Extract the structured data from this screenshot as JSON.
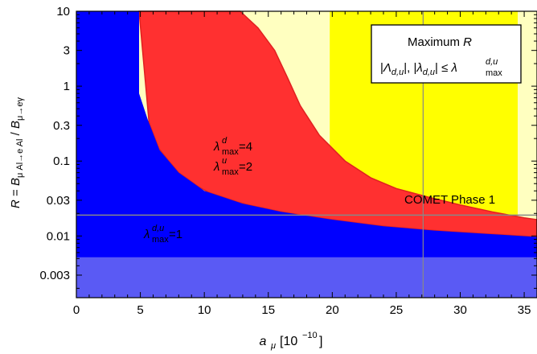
{
  "chart_data": {
    "type": "area",
    "x": {
      "label": "a_μ [10^-10]",
      "range": [
        0,
        36
      ],
      "ticks": [
        0,
        5,
        10,
        15,
        20,
        25,
        30,
        35
      ]
    },
    "y": {
      "label": "R = B_μAl→eAl / B_μ→eγ",
      "scale": "log",
      "range": [
        0.0015,
        10
      ],
      "ticks": [
        10,
        3,
        1,
        0.3,
        0.1,
        0.03,
        0.01,
        0.003
      ],
      "tick_labels": [
        "10",
        "3",
        "1",
        "0.3",
        "0.1",
        "0.03",
        "0.01",
        "0.003"
      ]
    },
    "bands": [
      {
        "x": [
          0,
          19.8
        ],
        "color": "#ffffc0"
      },
      {
        "x": [
          19.8,
          34.5
        ],
        "color": "#ffff00"
      },
      {
        "x": [
          34.5,
          36
        ],
        "color": "#ffffc0"
      }
    ],
    "regions": [
      {
        "name": "λ_max^{d,u}=1",
        "color": "#0000ff",
        "upper": [
          [
            0,
            10
          ],
          [
            4.9,
            10
          ],
          [
            4.9,
            0.8
          ],
          [
            5.6,
            0.35
          ],
          [
            6.5,
            0.14
          ],
          [
            8,
            0.07
          ],
          [
            10,
            0.04
          ],
          [
            13,
            0.027
          ],
          [
            16,
            0.021
          ],
          [
            20,
            0.0165
          ],
          [
            24,
            0.0135
          ],
          [
            28,
            0.0118
          ],
          [
            32,
            0.0107
          ],
          [
            36,
            0.0097
          ]
        ],
        "lower": 0.0015
      },
      {
        "name": "λ_max^d=4, λ_max^u=2",
        "color": "#ff3030",
        "upper": [
          [
            4.9,
            10
          ],
          [
            12.8,
            10
          ],
          [
            14.2,
            6
          ],
          [
            15.5,
            3
          ],
          [
            16.5,
            1.3
          ],
          [
            17.5,
            0.55
          ],
          [
            19,
            0.22
          ],
          [
            21,
            0.1
          ],
          [
            23,
            0.06
          ],
          [
            25,
            0.043
          ],
          [
            27.5,
            0.033
          ],
          [
            30,
            0.026
          ],
          [
            32.5,
            0.021
          ],
          [
            35,
            0.0175
          ],
          [
            36,
            0.0165
          ]
        ]
      }
    ],
    "lines": [
      {
        "name": "COMET Phase 1",
        "type": "horizontal",
        "y": 0.019,
        "color": "#888888"
      },
      {
        "type": "vertical",
        "x": 27.1,
        "color": "#888888"
      }
    ],
    "shaded": [
      {
        "y": [
          0.0015,
          0.0052
        ],
        "color": "rgba(200,200,230,0.45)"
      }
    ],
    "legend": {
      "title": "Maximum R",
      "line2": "|Λ_{d,u}|, |λ_{d,u}| ≤ λ_max^{d,u}",
      "placement": "top-right"
    },
    "annotations": {
      "lambda_d_4": "λ_max^d=4",
      "lambda_u_2": "λ_max^u=2",
      "lambda_du_1": "λ_max^{d,u}=1",
      "comet": "COMET Phase 1"
    }
  }
}
